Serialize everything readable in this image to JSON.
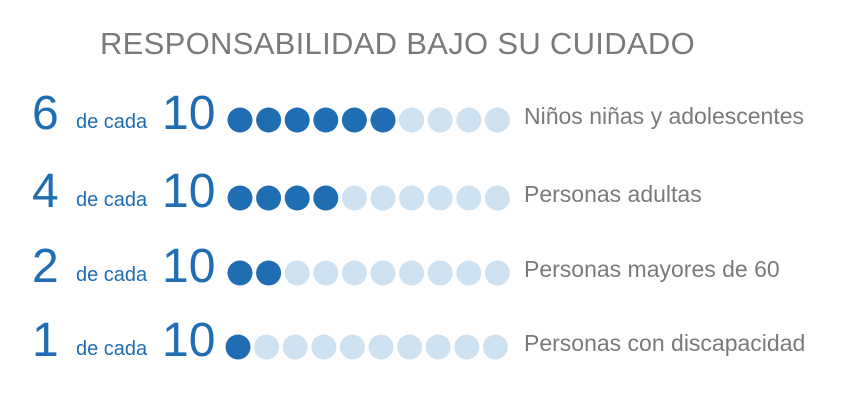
{
  "title": "RESPONSABILIDAD BAJO SU CUIDADO",
  "colors": {
    "filled": "#1f6db3",
    "empty": "#cfe2f1",
    "accent_text": "#1f6db3",
    "label_text": "#7a7a7a"
  },
  "chart_data": {
    "type": "pictograph",
    "title": "RESPONSABILIDAD BAJO SU CUIDADO",
    "connector": "de cada",
    "denominator": 10,
    "categories": [
      "Niños niñas y adolescentes",
      "Personas adultas",
      "Personas mayores de 60",
      "Personas con discapacidad"
    ],
    "values": [
      6,
      4,
      2,
      1
    ],
    "rows": [
      {
        "value": "6",
        "connector": "de cada",
        "total": "10",
        "label": "Niños niñas y adolescentes"
      },
      {
        "value": "4",
        "connector": "de cada",
        "total": "10",
        "label": "Personas adultas"
      },
      {
        "value": "2",
        "connector": "de cada",
        "total": "10",
        "label": "Personas mayores de 60"
      },
      {
        "value": "1",
        "connector": "de cada",
        "total": "10",
        "label": "Personas con discapacidad"
      }
    ]
  }
}
